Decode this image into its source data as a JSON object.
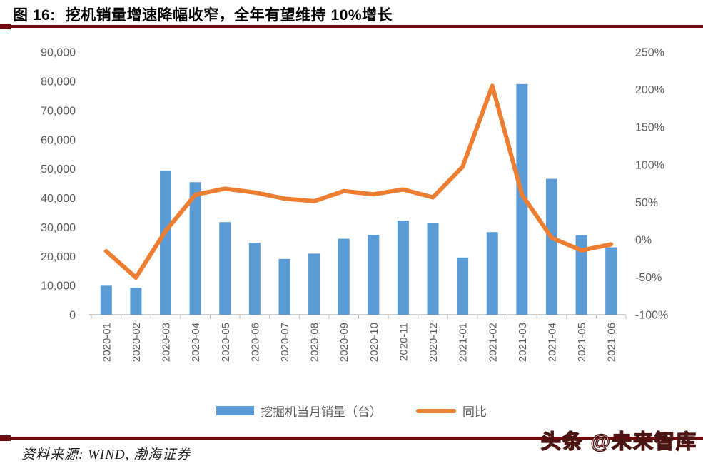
{
  "title": {
    "prefix": "图 16:",
    "text": "挖机销量增速降幅收窄，全年有望维持 10%增长"
  },
  "chart_data": {
    "type": "combo_bar_line",
    "title": "挖机销量增速降幅收窄，全年有望维持 10%增长",
    "categories": [
      "2020-01",
      "2020-02",
      "2020-03",
      "2020-04",
      "2020-05",
      "2020-06",
      "2020-07",
      "2020-08",
      "2020-09",
      "2020-10",
      "2020-11",
      "2020-12",
      "2021-01",
      "2021-02",
      "2021-03",
      "2021-04",
      "2021-05",
      "2021-06"
    ],
    "series": [
      {
        "name": "挖掘机当月销量（台）",
        "chart_type": "bar",
        "y_axis": "left",
        "unit": "台",
        "color": "#5B9BD5",
        "values": [
          9942,
          9280,
          49408,
          45426,
          31744,
          24625,
          19110,
          20939,
          26034,
          27331,
          32236,
          31530,
          19601,
          28305,
          79035,
          46572,
          27220,
          23100
        ]
      },
      {
        "name": "同比",
        "chart_type": "line",
        "y_axis": "right",
        "unit": "%",
        "color": "#ED7D31",
        "values": [
          -15.4,
          -50.5,
          11.6,
          59.9,
          68.0,
          62.9,
          54.8,
          51.3,
          64.8,
          60.5,
          66.9,
          56.4,
          97.2,
          205.0,
          60.0,
          2.5,
          -14.3,
          -6.2
        ]
      }
    ],
    "left_axis": {
      "min": 0,
      "max": 90000,
      "tick_step": 10000,
      "tick_labels": [
        "0",
        "10,000",
        "20,000",
        "30,000",
        "40,000",
        "50,000",
        "60,000",
        "70,000",
        "80,000",
        "90,000"
      ]
    },
    "right_axis": {
      "min": -100,
      "max": 250,
      "tick_step": 50,
      "tick_labels": [
        "-100%",
        "-50%",
        "0%",
        "50%",
        "100%",
        "150%",
        "200%",
        "250%"
      ]
    },
    "legend_position": "bottom",
    "grid": false
  },
  "footer": {
    "source": "资料来源: WIND, 渤海证券"
  },
  "watermark": "头条 @未来智库",
  "colors": {
    "bar": "#5B9BD5",
    "line": "#ED7D31",
    "axis_text": "#595959",
    "axis_line": "#BFBFBF",
    "rule": "#6E0B0C",
    "title_text": "#000000"
  }
}
